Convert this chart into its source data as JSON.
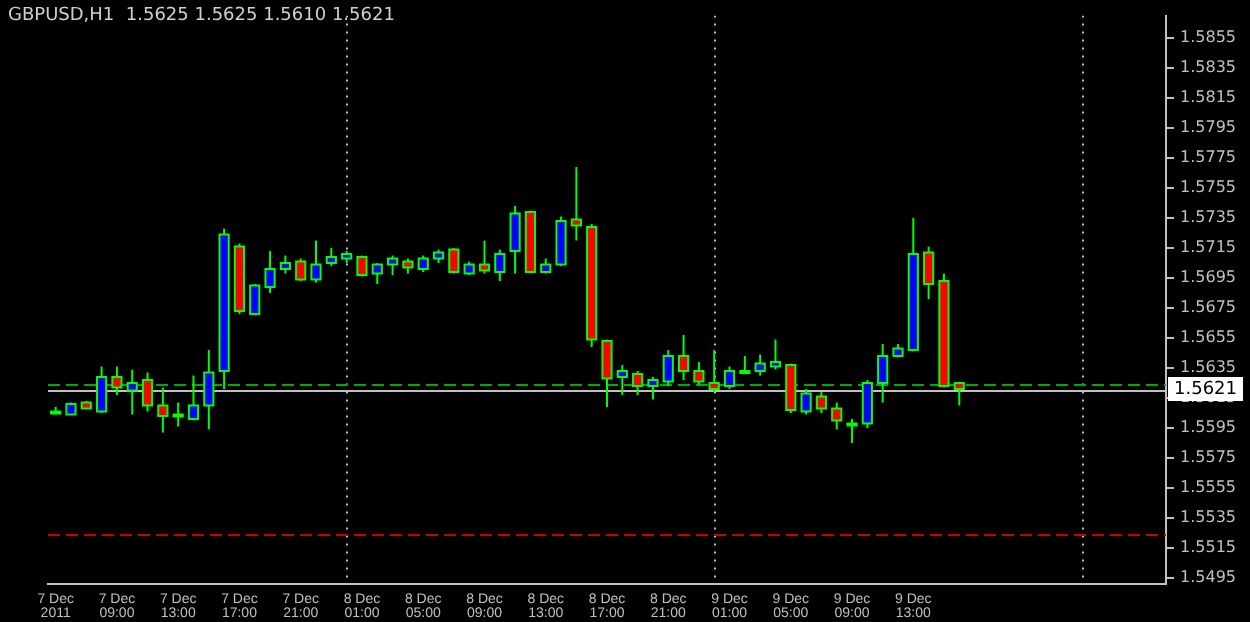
{
  "chart_data": {
    "type": "candlestick",
    "title": "GBPUSD,H1  1.5625 1.5625 1.5610 1.5621",
    "x": [
      "2011-12-07T05:00",
      "2011-12-07T06:00",
      "2011-12-07T07:00",
      "2011-12-07T08:00",
      "2011-12-07T09:00",
      "2011-12-07T10:00",
      "2011-12-07T11:00",
      "2011-12-07T12:00",
      "2011-12-07T13:00",
      "2011-12-07T14:00",
      "2011-12-07T15:00",
      "2011-12-07T16:00",
      "2011-12-07T17:00",
      "2011-12-07T18:00",
      "2011-12-07T19:00",
      "2011-12-07T20:00",
      "2011-12-07T21:00",
      "2011-12-07T22:00",
      "2011-12-07T23:00",
      "2011-12-08T00:00",
      "2011-12-08T01:00",
      "2011-12-08T02:00",
      "2011-12-08T03:00",
      "2011-12-08T04:00",
      "2011-12-08T05:00",
      "2011-12-08T06:00",
      "2011-12-08T07:00",
      "2011-12-08T08:00",
      "2011-12-08T09:00",
      "2011-12-08T10:00",
      "2011-12-08T11:00",
      "2011-12-08T12:00",
      "2011-12-08T13:00",
      "2011-12-08T14:00",
      "2011-12-08T15:00",
      "2011-12-08T16:00",
      "2011-12-08T17:00",
      "2011-12-08T18:00",
      "2011-12-08T19:00",
      "2011-12-08T20:00",
      "2011-12-08T21:00",
      "2011-12-08T22:00",
      "2011-12-08T23:00",
      "2011-12-09T00:00",
      "2011-12-09T01:00",
      "2011-12-09T02:00",
      "2011-12-09T03:00",
      "2011-12-09T04:00",
      "2011-12-09T05:00",
      "2011-12-09T06:00",
      "2011-12-09T07:00",
      "2011-12-09T08:00",
      "2011-12-09T09:00",
      "2011-12-09T10:00",
      "2011-12-09T11:00",
      "2011-12-09T12:00",
      "2011-12-09T13:00",
      "2011-12-09T14:00",
      "2011-12-09T15:00",
      "2011-12-09T16:00"
    ],
    "ohlc": [
      [
        1.5606,
        1.5609,
        1.5604,
        1.5606
      ],
      [
        1.5604,
        1.5612,
        1.5604,
        1.5611
      ],
      [
        1.5612,
        1.5613,
        1.5608,
        1.5608
      ],
      [
        1.5606,
        1.5636,
        1.5605,
        1.5629
      ],
      [
        1.5629,
        1.5636,
        1.5617,
        1.5622
      ],
      [
        1.562,
        1.5634,
        1.5604,
        1.5625
      ],
      [
        1.5627,
        1.5632,
        1.5606,
        1.561
      ],
      [
        1.561,
        1.5622,
        1.5592,
        1.5603
      ],
      [
        1.5604,
        1.5612,
        1.5596,
        1.5603
      ],
      [
        1.5601,
        1.563,
        1.56,
        1.561
      ],
      [
        1.561,
        1.5647,
        1.5594,
        1.5632
      ],
      [
        1.5633,
        1.5728,
        1.5621,
        1.5724
      ],
      [
        1.5716,
        1.5718,
        1.5671,
        1.5673
      ],
      [
        1.5671,
        1.5691,
        1.567,
        1.569
      ],
      [
        1.5689,
        1.5713,
        1.5685,
        1.5701
      ],
      [
        1.5701,
        1.571,
        1.5698,
        1.5705
      ],
      [
        1.5706,
        1.5708,
        1.5693,
        1.5694
      ],
      [
        1.5694,
        1.572,
        1.5692,
        1.5704
      ],
      [
        1.5705,
        1.5715,
        1.5703,
        1.5709
      ],
      [
        1.5708,
        1.5713,
        1.5705,
        1.5711
      ],
      [
        1.5709,
        1.571,
        1.5696,
        1.5697
      ],
      [
        1.5698,
        1.5705,
        1.5691,
        1.5704
      ],
      [
        1.5704,
        1.571,
        1.5697,
        1.5708
      ],
      [
        1.5706,
        1.5708,
        1.5698,
        1.5702
      ],
      [
        1.5701,
        1.571,
        1.5699,
        1.5708
      ],
      [
        1.5708,
        1.5714,
        1.5705,
        1.5712
      ],
      [
        1.5714,
        1.5715,
        1.5698,
        1.5699
      ],
      [
        1.5698,
        1.5706,
        1.5697,
        1.5704
      ],
      [
        1.5704,
        1.572,
        1.5698,
        1.57
      ],
      [
        1.5699,
        1.5714,
        1.5693,
        1.5711
      ],
      [
        1.5713,
        1.5743,
        1.5698,
        1.5738
      ],
      [
        1.5739,
        1.574,
        1.5698,
        1.5699
      ],
      [
        1.5699,
        1.5708,
        1.5698,
        1.5704
      ],
      [
        1.5704,
        1.5736,
        1.5703,
        1.5733
      ],
      [
        1.5734,
        1.5769,
        1.572,
        1.573
      ],
      [
        1.5729,
        1.5731,
        1.5649,
        1.5654
      ],
      [
        1.5653,
        1.5654,
        1.5609,
        1.5628
      ],
      [
        1.5629,
        1.5637,
        1.5617,
        1.5633
      ],
      [
        1.5631,
        1.5633,
        1.5617,
        1.5623
      ],
      [
        1.5623,
        1.5629,
        1.5614,
        1.5627
      ],
      [
        1.5626,
        1.5647,
        1.5623,
        1.5643
      ],
      [
        1.5643,
        1.5657,
        1.5627,
        1.5633
      ],
      [
        1.5633,
        1.5639,
        1.5624,
        1.5626
      ],
      [
        1.5625,
        1.5647,
        1.5619,
        1.5621
      ],
      [
        1.5623,
        1.5636,
        1.5621,
        1.5633
      ],
      [
        1.5633,
        1.5643,
        1.5632,
        1.5633
      ],
      [
        1.5633,
        1.5644,
        1.563,
        1.5638
      ],
      [
        1.5636,
        1.5654,
        1.5634,
        1.5639
      ],
      [
        1.5637,
        1.5638,
        1.5605,
        1.5607
      ],
      [
        1.5606,
        1.5621,
        1.5604,
        1.5618
      ],
      [
        1.5616,
        1.5619,
        1.5605,
        1.5608
      ],
      [
        1.5608,
        1.5612,
        1.5594,
        1.56
      ],
      [
        1.5598,
        1.5601,
        1.5585,
        1.5598
      ],
      [
        1.5598,
        1.5627,
        1.5595,
        1.5625
      ],
      [
        1.5625,
        1.5651,
        1.5612,
        1.5643
      ],
      [
        1.5643,
        1.5651,
        1.5642,
        1.5648
      ],
      [
        1.5647,
        1.5735,
        1.5646,
        1.5711
      ],
      [
        1.5712,
        1.5716,
        1.5681,
        1.5691
      ],
      [
        1.5693,
        1.5698,
        1.5622,
        1.5623
      ],
      [
        1.5625,
        1.5625,
        1.561,
        1.5621
      ]
    ],
    "colors": [
      "#0000ff",
      "#0000ff",
      "#ff0000",
      "#0000ff",
      "#ff0000",
      "#0000ff",
      "#ff0000",
      "#ff0000",
      "#ff0000",
      "#0000ff",
      "#0000ff",
      "#0000ff",
      "#ff0000",
      "#0000ff",
      "#0000ff",
      "#0000ff",
      "#ff0000",
      "#0000ff",
      "#0000ff",
      "#0000ff",
      "#ff0000",
      "#0000ff",
      "#0000ff",
      "#ff0000",
      "#0000ff",
      "#0000ff",
      "#ff0000",
      "#0000ff",
      "#ff0000",
      "#0000ff",
      "#0000ff",
      "#ff0000",
      "#0000ff",
      "#0000ff",
      "#ff0000",
      "#ff0000",
      "#ff0000",
      "#0000ff",
      "#ff0000",
      "#0000ff",
      "#0000ff",
      "#ff0000",
      "#ff0000",
      "#ff0000",
      "#0000ff",
      "#0000ff",
      "#0000ff",
      "#0000ff",
      "#ff0000",
      "#0000ff",
      "#ff0000",
      "#ff0000",
      "#0000ff",
      "#0000ff",
      "#0000ff",
      "#0000ff",
      "#0000ff",
      "#ff0000",
      "#ff0000",
      "#ff0000"
    ],
    "xlim": [
      "2011-12-07T04:30",
      "2011-12-10T05:30"
    ],
    "xticks": [
      {
        "value": "2011-12-07T05:00",
        "label": "7 Dec 2011"
      },
      {
        "value": "2011-12-07T09:00",
        "label": "7 Dec 09:00"
      },
      {
        "value": "2011-12-07T13:00",
        "label": "7 Dec 13:00"
      },
      {
        "value": "2011-12-07T17:00",
        "label": "7 Dec 17:00"
      },
      {
        "value": "2011-12-07T21:00",
        "label": "7 Dec 21:00"
      },
      {
        "value": "2011-12-08T01:00",
        "label": "8 Dec 01:00"
      },
      {
        "value": "2011-12-08T05:00",
        "label": "8 Dec 05:00"
      },
      {
        "value": "2011-12-08T09:00",
        "label": "8 Dec 09:00"
      },
      {
        "value": "2011-12-08T13:00",
        "label": "8 Dec 13:00"
      },
      {
        "value": "2011-12-08T17:00",
        "label": "8 Dec 17:00"
      },
      {
        "value": "2011-12-08T21:00",
        "label": "8 Dec 21:00"
      },
      {
        "value": "2011-12-09T01:00",
        "label": "9 Dec 01:00"
      },
      {
        "value": "2011-12-09T05:00",
        "label": "9 Dec 05:00"
      },
      {
        "value": "2011-12-09T09:00",
        "label": "9 Dec 09:00"
      },
      {
        "value": "2011-12-09T13:00",
        "label": "9 Dec 13:00"
      }
    ],
    "ylim": [
      1.5491,
      1.587
    ],
    "yticks": [
      1.5495,
      1.5515,
      1.5535,
      1.5555,
      1.5575,
      1.5595,
      1.5615,
      1.5635,
      1.5655,
      1.5675,
      1.5695,
      1.5715,
      1.5735,
      1.5755,
      1.5775,
      1.5795,
      1.5815,
      1.5835,
      1.5855
    ],
    "ref_lines": [
      {
        "axis": "x",
        "value": "2011-12-08T00:00",
        "color": "#c0c0c0",
        "line_style": "dotted"
      },
      {
        "axis": "x",
        "value": "2011-12-09T00:00",
        "color": "#c0c0c0",
        "line_style": "dotted"
      },
      {
        "axis": "x",
        "value": "2011-12-10T00:00",
        "color": "#c0c0c0",
        "line_style": "dotted"
      },
      {
        "axis": "y",
        "value": 1.5624,
        "color": "#00aa00",
        "line_style": "dashed"
      },
      {
        "axis": "y",
        "value": 1.5525,
        "color": "#cc0000",
        "line_style": "dashed"
      },
      {
        "axis": "y",
        "value": 1.5621,
        "label": "1.5621",
        "color": "#c0c0c0",
        "line_style": "solid"
      }
    ]
  }
}
